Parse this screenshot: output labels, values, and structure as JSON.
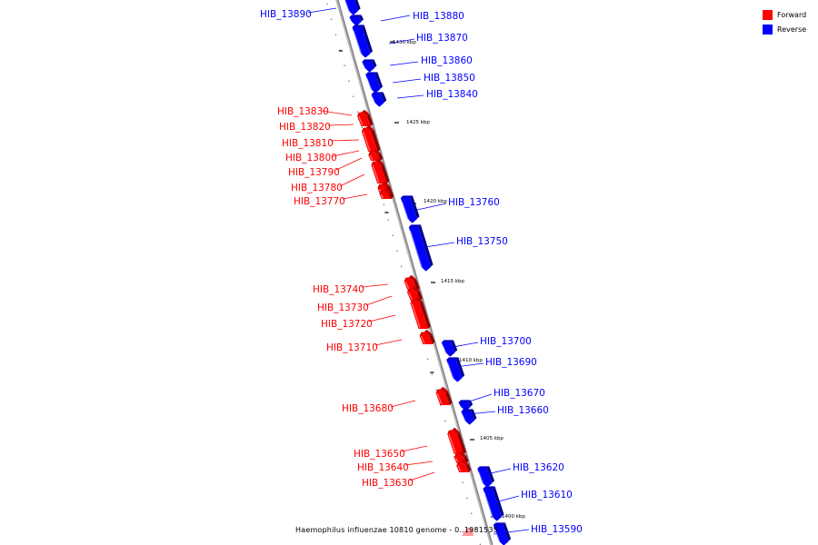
{
  "title": "Haemophilus influenzae 10810 genome - 0..1981535",
  "legend": {
    "forward": {
      "label": "Forward",
      "color": "#ff0000"
    },
    "reverse": {
      "label": "Reverse",
      "color": "#0000ff"
    }
  },
  "scale_ticks": [
    "1430 kbp",
    "1425 kbp",
    "1420 kbp",
    "1415 kbp",
    "1410 kbp",
    "1405 kbp",
    "1400 kbp"
  ],
  "reverse_genes": [
    "HIB_13890",
    "HIB_13880",
    "HIB_13870",
    "HIB_13860",
    "HIB_13850",
    "HIB_13840",
    "HIB_13760",
    "HIB_13750",
    "HIB_13700",
    "HIB_13690",
    "HIB_13670",
    "HIB_13660",
    "HIB_13620",
    "HIB_13610",
    "HIB_13590"
  ],
  "forward_genes": [
    "HIB_13830",
    "HIB_13820",
    "HIB_13810",
    "HIB_13800",
    "HIB_13790",
    "HIB_13780",
    "HIB_13770",
    "HIB_13740",
    "HIB_13730",
    "HIB_13720",
    "HIB_13710",
    "HIB_13680",
    "HIB_13650",
    "HIB_13640",
    "HIB_13630"
  ]
}
